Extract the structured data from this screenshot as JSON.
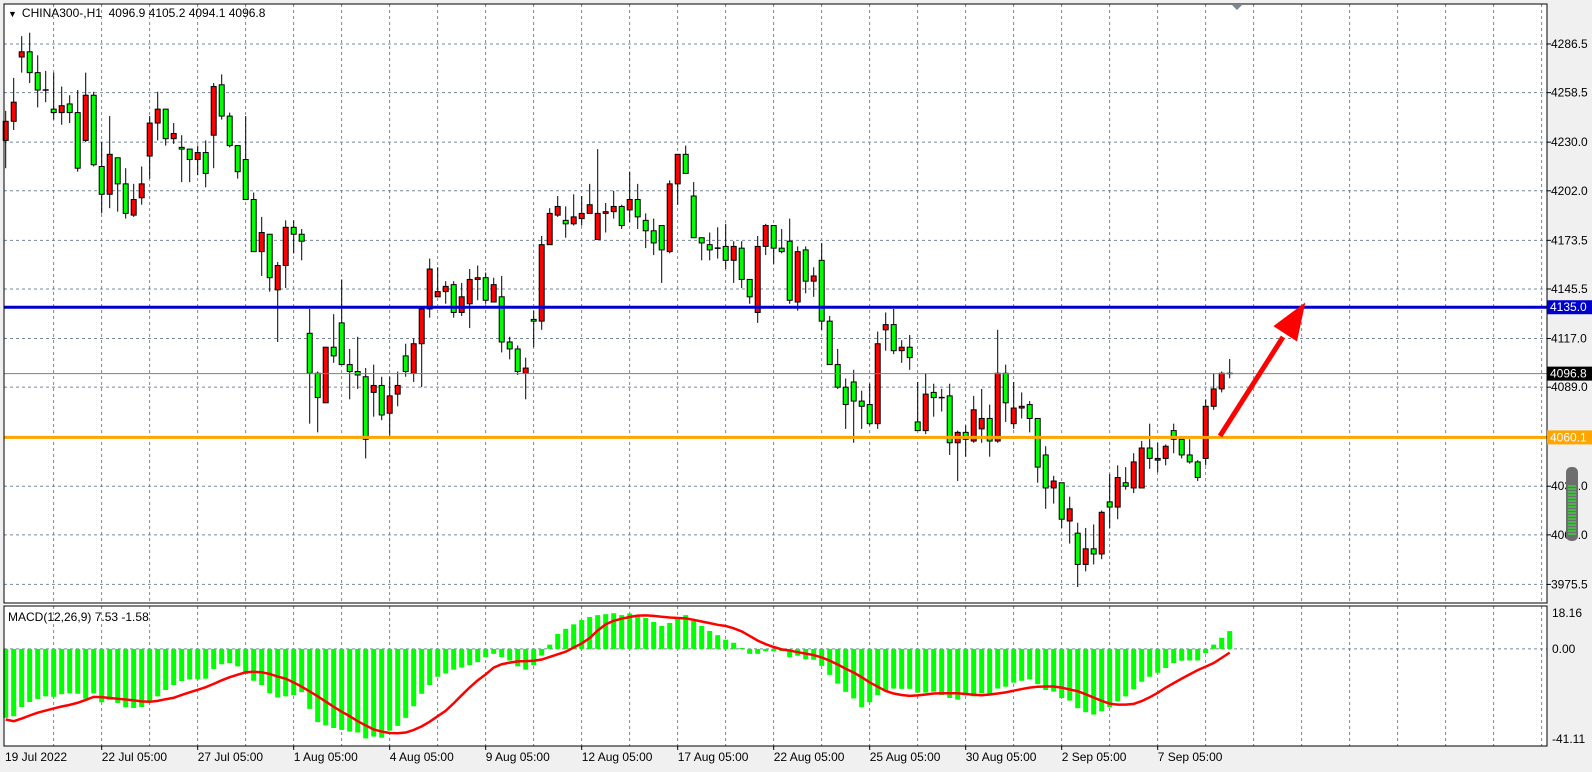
{
  "header": {
    "symbol": "CHINA300-,H1",
    "ohlc_readout": "4096.9 4105.2 4094.1 4096.8",
    "menu_icon": "triangle-down-icon"
  },
  "macd_header": {
    "label": "MACD(12,26,9) 7.53 -1.58"
  },
  "colors": {
    "up_candle": "#ff0000",
    "down_candle": "#00ff00",
    "support_line": "#ffa500",
    "resistance_line": "#0000cc",
    "histogram": "#00ff00",
    "signal_line": "#ff0000",
    "grid": "#778899",
    "arrow": "#ff0000"
  },
  "chart_data": [
    {
      "type": "candlestick",
      "symbol": "CHINA300-",
      "timeframe": "H1",
      "ylim": [
        3964.8,
        4309.5
      ],
      "y_ticks": [
        "4286.5",
        "4258.5",
        "4230.0",
        "4202.0",
        "4173.5",
        "4145.5",
        "4117.0",
        "4089.0",
        "4032.0",
        "4004.0",
        "3975.5"
      ],
      "x_labels": [
        "19 Jul 2022",
        "22 Jul 05:00",
        "27 Jul 05:00",
        "1 Aug 05:00",
        "4 Aug 05:00",
        "9 Aug 05:00",
        "12 Aug 05:00",
        "17 Aug 05:00",
        "22 Aug 05:00",
        "25 Aug 05:00",
        "30 Aug 05:00",
        "2 Sep 05:00",
        "7 Sep 05:00"
      ],
      "candles_ohlc": [
        [
          4231,
          4248,
          4215,
          4242
        ],
        [
          4242,
          4267,
          4237,
          4253
        ],
        [
          4279,
          4291,
          4270,
          4282
        ],
        [
          4282,
          4293,
          4264,
          4270
        ],
        [
          4270,
          4280,
          4250,
          4260
        ],
        [
          4260,
          4271,
          4253,
          4260
        ],
        [
          4249,
          4270,
          4243,
          4247
        ],
        [
          4247,
          4262,
          4240,
          4251
        ],
        [
          4252,
          4257,
          4241,
          4247
        ],
        [
          4247,
          4260,
          4213,
          4215
        ],
        [
          4231,
          4270,
          4230,
          4257
        ],
        [
          4257,
          4259,
          4216,
          4217
        ],
        [
          4216,
          4230,
          4189,
          4200
        ],
        [
          4200,
          4245,
          4192,
          4223
        ],
        [
          4221,
          4221,
          4190,
          4206
        ],
        [
          4206,
          4215,
          4186,
          4189
        ],
        [
          4188,
          4206,
          4187,
          4197
        ],
        [
          4198,
          4216,
          4194,
          4206
        ],
        [
          4222,
          4245,
          4209,
          4241
        ],
        [
          4241,
          4259,
          4231,
          4249
        ],
        [
          4249,
          4249,
          4228,
          4232
        ],
        [
          4232,
          4241,
          4229,
          4235
        ],
        [
          4227,
          4234,
          4207,
          4226
        ],
        [
          4226,
          4226,
          4207,
          4220
        ],
        [
          4220,
          4228,
          4211,
          4224
        ],
        [
          4224,
          4231,
          4204,
          4212
        ],
        [
          4234,
          4264,
          4215,
          4262
        ],
        [
          4263,
          4269,
          4243,
          4245
        ],
        [
          4245,
          4247,
          4227,
          4228
        ],
        [
          4228,
          4228,
          4209,
          4213
        ],
        [
          4220,
          4245,
          4197,
          4197
        ],
        [
          4197,
          4201,
          4167,
          4167
        ],
        [
          4167,
          4187,
          4153,
          4178
        ],
        [
          4177,
          4177,
          4144,
          4152
        ],
        [
          4145,
          4161,
          4115,
          4159
        ],
        [
          4159,
          4185,
          4146,
          4181
        ],
        [
          4181,
          4185,
          4166,
          4177
        ],
        [
          4177,
          4180,
          4162,
          4173
        ],
        [
          4120,
          4134,
          4068,
          4097
        ],
        [
          4097,
          4098,
          4063,
          4083
        ],
        [
          4080,
          4112,
          4080,
          4112
        ],
        [
          4112,
          4131,
          4103,
          4107
        ],
        [
          4126,
          4151,
          4102,
          4102
        ],
        [
          4102,
          4111,
          4082,
          4098
        ],
        [
          4098,
          4118,
          4088,
          4096
        ],
        [
          4095,
          4100,
          4048,
          4059
        ],
        [
          4086,
          4102,
          4072,
          4090
        ],
        [
          4090,
          4095,
          4070,
          4073
        ],
        [
          4074,
          4095,
          4061,
          4084
        ],
        [
          4085,
          4098,
          4078,
          4090
        ],
        [
          4107,
          4114,
          4095,
          4098
        ],
        [
          4097,
          4117,
          4092,
          4114
        ],
        [
          4114,
          4134,
          4089,
          4134
        ],
        [
          4134,
          4163,
          4129,
          4157
        ],
        [
          4141,
          4158,
          4141,
          4144
        ],
        [
          4144,
          4150,
          4137,
          4147
        ],
        [
          4148,
          4150,
          4129,
          4132
        ],
        [
          4132,
          4149,
          4130,
          4141
        ],
        [
          4137,
          4157,
          4123,
          4151
        ],
        [
          4151,
          4159,
          4139,
          4152
        ],
        [
          4152,
          4155,
          4137,
          4139
        ],
        [
          4138,
          4152,
          4138,
          4148
        ],
        [
          4141,
          4153,
          4109,
          4115
        ],
        [
          4115,
          4118,
          4105,
          4111
        ],
        [
          4111,
          4113,
          4096,
          4098
        ],
        [
          4097,
          4106,
          4082,
          4100
        ],
        [
          4128,
          4133,
          4112,
          4127
        ],
        [
          4127,
          4176,
          4122,
          4171
        ],
        [
          4171,
          4192,
          4171,
          4189
        ],
        [
          4188,
          4199,
          4187,
          4193
        ],
        [
          4185,
          4193,
          4175,
          4183
        ],
        [
          4183,
          4200,
          4182,
          4187
        ],
        [
          4186,
          4199,
          4182,
          4189
        ],
        [
          4189,
          4206,
          4189,
          4194
        ],
        [
          4174,
          4226,
          4174,
          4189
        ],
        [
          4189,
          4195,
          4178,
          4190
        ],
        [
          4190,
          4202,
          4186,
          4193
        ],
        [
          4193,
          4194,
          4180,
          4182
        ],
        [
          4191,
          4213,
          4184,
          4197
        ],
        [
          4197,
          4206,
          4180,
          4187
        ],
        [
          4185,
          4189,
          4169,
          4179
        ],
        [
          4179,
          4186,
          4165,
          4172
        ],
        [
          4182,
          4182,
          4149,
          4168
        ],
        [
          4167,
          4208,
          4166,
          4206
        ],
        [
          4206,
          4223,
          4194,
          4223
        ],
        [
          4223,
          4228,
          4212,
          4212
        ],
        [
          4199,
          4207,
          4175,
          4175
        ],
        [
          4175,
          4175,
          4162,
          4172
        ],
        [
          4171,
          4178,
          4162,
          4168
        ],
        [
          4169,
          4181,
          4163,
          4169
        ],
        [
          4170,
          4183,
          4157,
          4162
        ],
        [
          4162,
          4173,
          4149,
          4170
        ],
        [
          4169,
          4173,
          4146,
          4151
        ],
        [
          4151,
          4151,
          4137,
          4141
        ],
        [
          4132,
          4176,
          4126,
          4170
        ],
        [
          4170,
          4183,
          4165,
          4182
        ],
        [
          4182,
          4182,
          4160,
          4169
        ],
        [
          4169,
          4180,
          4166,
          4167
        ],
        [
          4173,
          4186,
          4137,
          4139
        ],
        [
          4138,
          4170,
          4133,
          4167
        ],
        [
          4168,
          4170,
          4143,
          4150
        ],
        [
          4150,
          4158,
          4141,
          4153
        ],
        [
          4162,
          4172,
          4122,
          4127
        ],
        [
          4127,
          4130,
          4102,
          4102
        ],
        [
          4102,
          4111,
          4088,
          4089
        ],
        [
          4089,
          4094,
          4065,
          4079
        ],
        [
          4092,
          4099,
          4057,
          4081
        ],
        [
          4081,
          4087,
          4065,
          4078
        ],
        [
          4079,
          4091,
          4067,
          4068
        ],
        [
          4068,
          4121,
          4065,
          4114
        ],
        [
          4122,
          4132,
          4110,
          4125
        ],
        [
          4125,
          4134,
          4108,
          4110
        ],
        [
          4110,
          4116,
          4103,
          4112
        ],
        [
          4112,
          4119,
          4099,
          4106
        ],
        [
          4069,
          4092,
          4064,
          4064
        ],
        [
          4064,
          4097,
          4062,
          4085
        ],
        [
          4086,
          4091,
          4072,
          4083
        ],
        [
          4083,
          4088,
          4075,
          4083
        ],
        [
          4084,
          4091,
          4050,
          4057
        ],
        [
          4057,
          4064,
          4035,
          4063
        ],
        [
          4063,
          4067,
          4049,
          4059
        ],
        [
          4058,
          4084,
          4057,
          4076
        ],
        [
          4065,
          4088,
          4057,
          4071
        ],
        [
          4071,
          4079,
          4049,
          4058
        ],
        [
          4058,
          4122,
          4057,
          4097
        ],
        [
          4097,
          4102,
          4069,
          4080
        ],
        [
          4068,
          4092,
          4065,
          4077
        ],
        [
          4077,
          4086,
          4071,
          4078
        ],
        [
          4079,
          4081,
          4063,
          4071
        ],
        [
          4071,
          4071,
          4034,
          4043
        ],
        [
          4050,
          4055,
          4019,
          4031
        ],
        [
          4031,
          4038,
          4022,
          4035
        ],
        [
          4034,
          4034,
          4008,
          4013
        ],
        [
          4012,
          4026,
          3999,
          4019
        ],
        [
          4005,
          4011,
          3974,
          3987
        ],
        [
          3987,
          4008,
          3983,
          3996
        ],
        [
          3996,
          4010,
          3987,
          3993
        ],
        [
          3993,
          4018,
          3990,
          4017
        ],
        [
          4023,
          4039,
          4008,
          4020
        ],
        [
          4020,
          4044,
          4013,
          4037
        ],
        [
          4034,
          4043,
          4030,
          4032
        ],
        [
          4031,
          4051,
          4028,
          4046
        ],
        [
          4031,
          4058,
          4031,
          4054
        ],
        [
          4054,
          4068,
          4042,
          4048
        ],
        [
          4047,
          4057,
          4040,
          4048
        ],
        [
          4048,
          4056,
          4044,
          4055
        ],
        [
          4064,
          4068,
          4051,
          4059
        ],
        [
          4059,
          4059,
          4048,
          4050
        ],
        [
          4050,
          4059,
          4045,
          4046
        ],
        [
          4046,
          4047,
          4035,
          4037
        ],
        [
          4048,
          4082,
          4044,
          4078
        ],
        [
          4078,
          4097,
          4076,
          4088
        ],
        [
          4088,
          4098,
          4086,
          4097
        ],
        [
          4096.9,
          4105.2,
          4094.1,
          4096.8
        ]
      ],
      "hlines": [
        {
          "value": 4135.0,
          "label": "4135.0",
          "role": "resistance"
        },
        {
          "value": 4060.1,
          "label": "4060.1",
          "role": "support"
        }
      ],
      "current_price": {
        "value": 4096.8,
        "label": "4096.8"
      },
      "annotation": "arrow-up-right"
    },
    {
      "type": "bar+line",
      "indicator": "MACD(12,26,9)",
      "ylim": [
        -41.11,
        18.16
      ],
      "y_ticks": [
        "18.16",
        "0.00",
        "-41.11"
      ],
      "histogram": [
        -29.2,
        -28.5,
        -24.6,
        -22.5,
        -21.2,
        -20.1,
        -20.3,
        -19.2,
        -18.8,
        -19.0,
        -21.1,
        -18.8,
        -22.6,
        -21.5,
        -22.9,
        -24.7,
        -25.0,
        -24.6,
        -22.5,
        -20.1,
        -17.4,
        -15.3,
        -13.6,
        -12.9,
        -12.9,
        -12.6,
        -8.5,
        -6.5,
        -6.0,
        -7.4,
        -10.7,
        -13.5,
        -15.3,
        -18.8,
        -20.6,
        -20.1,
        -19.6,
        -18.3,
        -25.4,
        -31.0,
        -32.4,
        -33.5,
        -34.3,
        -35.0,
        -35.4,
        -37.9,
        -37.1,
        -37.6,
        -34.6,
        -32.6,
        -29.2,
        -24.3,
        -19.0,
        -15.3,
        -11.8,
        -10.4,
        -8.8,
        -7.9,
        -6.9,
        -5.6,
        -3.5,
        -2.1,
        -3.5,
        -4.9,
        -7.4,
        -8.8,
        -6.9,
        -2.8,
        1.8,
        6.3,
        8.5,
        10.4,
        12.2,
        13.5,
        14.3,
        14.7,
        15.1,
        14.3,
        15.0,
        14.3,
        13.1,
        11.4,
        9.7,
        11.0,
        13.1,
        14.3,
        11.8,
        9.7,
        7.6,
        5.8,
        3.9,
        2.6,
        0.4,
        -2.1,
        -2.1,
        -1.0,
        -1.0,
        -1.0,
        -3.5,
        -2.9,
        -4.4,
        -4.6,
        -7.2,
        -11.0,
        -14.7,
        -18.2,
        -21.0,
        -24.7,
        -22.6,
        -19.6,
        -17.6,
        -16.8,
        -16.9,
        -16.9,
        -18.5,
        -18.5,
        -18.1,
        -19.6,
        -20.8,
        -21.5,
        -19.6,
        -20.1,
        -18.8,
        -19.0,
        -16.8,
        -16.0,
        -14.3,
        -13.5,
        -12.9,
        -14.9,
        -17.4,
        -18.1,
        -20.8,
        -21.9,
        -25.1,
        -26.8,
        -27.8,
        -26.4,
        -24.7,
        -22.2,
        -20.1,
        -17.1,
        -13.9,
        -11.8,
        -10.1,
        -8.1,
        -6.0,
        -5.0,
        -4.9,
        -4.9,
        -1.8,
        1.8,
        4.7,
        7.53
      ],
      "signal": [
        -29.9,
        -30.6,
        -29.5,
        -28.2,
        -27.0,
        -26.1,
        -25.2,
        -24.4,
        -23.7,
        -22.8,
        -21.6,
        -20.3,
        -20.4,
        -20.8,
        -21.1,
        -21.4,
        -21.8,
        -22.2,
        -22.4,
        -22.0,
        -21.3,
        -20.7,
        -19.5,
        -18.4,
        -17.3,
        -16.2,
        -14.8,
        -13.3,
        -12.0,
        -10.9,
        -9.9,
        -9.7,
        -9.9,
        -10.6,
        -11.7,
        -12.6,
        -14.2,
        -16.0,
        -18.0,
        -20.1,
        -22.3,
        -24.5,
        -26.6,
        -28.5,
        -30.6,
        -32.4,
        -34.1,
        -35.0,
        -35.6,
        -35.7,
        -35.4,
        -34.3,
        -32.8,
        -30.8,
        -28.5,
        -26.2,
        -23.0,
        -19.6,
        -16.3,
        -13.3,
        -10.8,
        -7.9,
        -6.5,
        -5.8,
        -5.3,
        -5.2,
        -5.0,
        -4.5,
        -3.4,
        -2.3,
        -1.2,
        0.6,
        2.3,
        4.6,
        7.8,
        10.4,
        11.9,
        12.8,
        13.5,
        14.1,
        14.2,
        14.0,
        13.6,
        13.3,
        13.1,
        12.9,
        12.3,
        11.6,
        10.9,
        10.2,
        9.7,
        8.7,
        7.4,
        5.5,
        3.5,
        2.0,
        0.8,
        -0.2,
        -0.7,
        -1.4,
        -2.0,
        -2.6,
        -3.6,
        -5.0,
        -6.6,
        -8.4,
        -10.0,
        -12.0,
        -14.2,
        -16.0,
        -17.8,
        -18.9,
        -19.5,
        -19.9,
        -19.7,
        -19.3,
        -18.9,
        -18.8,
        -18.8,
        -18.8,
        -19.1,
        -19.4,
        -19.6,
        -19.3,
        -18.9,
        -18.4,
        -17.7,
        -17.0,
        -16.4,
        -16.0,
        -15.9,
        -15.9,
        -16.4,
        -17.2,
        -17.9,
        -19.2,
        -20.6,
        -22.0,
        -23.2,
        -23.6,
        -23.6,
        -23.3,
        -22.1,
        -20.5,
        -18.6,
        -16.4,
        -14.5,
        -12.6,
        -10.8,
        -9.0,
        -7.5,
        -6.0,
        -3.8,
        -1.58
      ]
    }
  ]
}
